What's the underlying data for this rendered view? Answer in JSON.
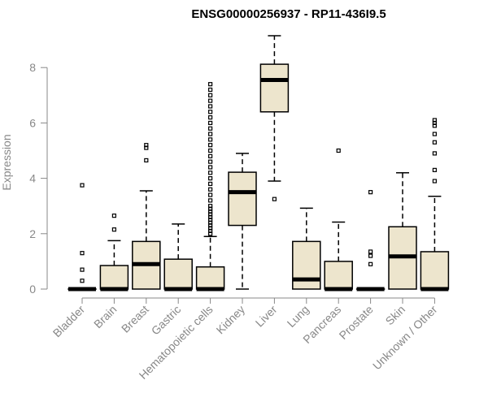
{
  "chart_data": {
    "type": "boxplot",
    "title": "ENSG00000256937 - RP11-436I9.5",
    "xlabel": "",
    "ylabel": "Expression",
    "ylim": [
      0,
      9.2
    ],
    "yticks": [
      0,
      2,
      4,
      6,
      8
    ],
    "colors": {
      "box_fill": "#ede5cd",
      "box_stroke": "#000000",
      "axis": "#888888"
    },
    "categories": [
      "Bladder",
      "Brain",
      "Breast",
      "Gastric",
      "Hematopoietic cells",
      "Kidney",
      "Liver",
      "Lung",
      "Pancreas",
      "Prostate",
      "Skin",
      "Unknown / Other"
    ],
    "boxes": [
      {
        "label": "Bladder",
        "min": 0,
        "q1": 0,
        "median": 0,
        "q3": 0,
        "max": 0,
        "outliers": [
          0.3,
          0.7,
          1.3,
          3.75
        ]
      },
      {
        "label": "Brain",
        "min": 0,
        "q1": 0,
        "median": 0,
        "q3": 0.85,
        "max": 1.75,
        "outliers": [
          2.15,
          2.65
        ]
      },
      {
        "label": "Breast",
        "min": 0,
        "q1": 0,
        "median": 0.9,
        "q3": 1.72,
        "max": 3.55,
        "outliers": [
          4.65,
          5.1,
          5.2
        ]
      },
      {
        "label": "Gastric",
        "min": 0,
        "q1": 0,
        "median": 0,
        "q3": 1.08,
        "max": 2.35,
        "outliers": []
      },
      {
        "label": "Hematopoietic cells",
        "min": 0,
        "q1": 0,
        "median": 0,
        "q3": 0.8,
        "max": 1.9,
        "outliers": [
          2.0,
          2.1,
          2.2,
          2.3,
          2.4,
          2.5,
          2.6,
          2.7,
          2.8,
          2.9,
          3.0,
          3.2,
          3.4,
          3.6,
          3.8,
          4.0,
          4.2,
          4.4,
          4.6,
          4.8,
          5.0,
          5.2,
          5.4,
          5.6,
          5.8,
          6.0,
          6.2,
          6.4,
          6.6,
          6.8,
          7.0,
          7.2,
          7.4
        ]
      },
      {
        "label": "Kidney",
        "min": 0,
        "q1": 2.3,
        "median": 3.5,
        "q3": 4.22,
        "max": 4.9,
        "outliers": []
      },
      {
        "label": "Liver",
        "min": 3.9,
        "q1": 6.4,
        "median": 7.55,
        "q3": 8.12,
        "max": 9.15,
        "outliers": [
          3.25
        ]
      },
      {
        "label": "Lung",
        "min": 0,
        "q1": 0,
        "median": 0.35,
        "q3": 1.72,
        "max": 2.92,
        "outliers": []
      },
      {
        "label": "Pancreas",
        "min": 0,
        "q1": 0,
        "median": 0,
        "q3": 1.0,
        "max": 2.42,
        "outliers": [
          5.0
        ]
      },
      {
        "label": "Prostate",
        "min": 0,
        "q1": 0,
        "median": 0,
        "q3": 0,
        "max": 0,
        "outliers": [
          0.9,
          1.2,
          1.35,
          3.5
        ]
      },
      {
        "label": "Skin",
        "min": 0,
        "q1": 0,
        "median": 1.18,
        "q3": 2.25,
        "max": 4.2,
        "outliers": []
      },
      {
        "label": "Unknown / Other",
        "min": 0,
        "q1": 0,
        "median": 0,
        "q3": 1.35,
        "max": 3.35,
        "outliers": [
          3.9,
          4.3,
          4.9,
          5.3,
          5.6,
          5.9,
          6.0,
          6.1
        ]
      }
    ]
  }
}
